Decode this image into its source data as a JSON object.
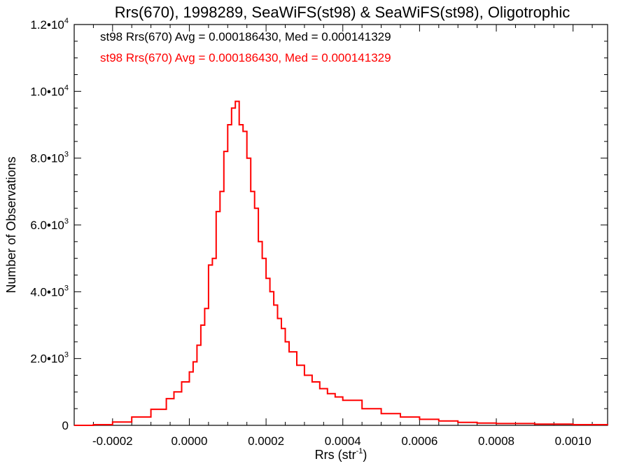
{
  "chart_data": {
    "type": "histogram",
    "title": "Rrs(670), 1998289, SeaWiFS(st98) & SeaWiFS(st98), Oligotrophic",
    "xlabel": "Rrs (str",
    "xlabel_sup": "-1",
    "xlabel_end": ")",
    "ylabel": "Number of Observations",
    "xlim": [
      -0.0003,
      0.00109
    ],
    "ylim": [
      0,
      12000
    ],
    "grid": false,
    "x_ticks": [
      -0.0002,
      0.0,
      0.0002,
      0.0004,
      0.0006,
      0.0008,
      0.001
    ],
    "x_tick_labels": [
      "-0.0002",
      "0.0000",
      "0.0002",
      "0.0004",
      "0.0006",
      "0.0008",
      "0.0010"
    ],
    "y_ticks": [
      0,
      2000,
      4000,
      6000,
      8000,
      10000,
      12000
    ],
    "y_tick_labels": [
      {
        "base": "0",
        "exp": ""
      },
      {
        "base": "2.0•10",
        "exp": "3"
      },
      {
        "base": "4.0•10",
        "exp": "3"
      },
      {
        "base": "6.0•10",
        "exp": "3"
      },
      {
        "base": "8.0•10",
        "exp": "3"
      },
      {
        "base": "1.0•10",
        "exp": "4"
      },
      {
        "base": "1.2•10",
        "exp": "4"
      }
    ],
    "legend": [
      {
        "text": "st98 Rrs(670) Avg = 0.000186430, Med = 0.000141329",
        "color": "#000000"
      },
      {
        "text": "st98 Rrs(670) Avg = 0.000186430, Med = 0.000141329",
        "color": "#ff0000"
      }
    ],
    "series": [
      {
        "color": "#ff0000",
        "points": [
          [
            -0.0003,
            0
          ],
          [
            -0.00025,
            20
          ],
          [
            -0.0002,
            100
          ],
          [
            -0.00015,
            250
          ],
          [
            -0.0001,
            480
          ],
          [
            -6e-05,
            800
          ],
          [
            -4e-05,
            1000
          ],
          [
            -2e-05,
            1300
          ],
          [
            0.0,
            1600
          ],
          [
            1e-05,
            1900
          ],
          [
            2e-05,
            2400
          ],
          [
            3e-05,
            3000
          ],
          [
            4e-05,
            3500
          ],
          [
            5e-05,
            4800
          ],
          [
            6e-05,
            5000
          ],
          [
            7e-05,
            6400
          ],
          [
            8e-05,
            7000
          ],
          [
            9e-05,
            8200
          ],
          [
            0.0001,
            9000
          ],
          [
            0.00011,
            9500
          ],
          [
            0.00012,
            9700
          ],
          [
            0.00013,
            9000
          ],
          [
            0.00014,
            8800
          ],
          [
            0.00015,
            8000
          ],
          [
            0.00016,
            7000
          ],
          [
            0.00017,
            6500
          ],
          [
            0.00018,
            5500
          ],
          [
            0.00019,
            5000
          ],
          [
            0.0002,
            4400
          ],
          [
            0.00021,
            4000
          ],
          [
            0.00022,
            3600
          ],
          [
            0.00023,
            3200
          ],
          [
            0.00024,
            2900
          ],
          [
            0.00025,
            2500
          ],
          [
            0.00026,
            2200
          ],
          [
            0.00028,
            1800
          ],
          [
            0.0003,
            1500
          ],
          [
            0.00032,
            1300
          ],
          [
            0.00034,
            1100
          ],
          [
            0.00036,
            950
          ],
          [
            0.00038,
            850
          ],
          [
            0.0004,
            750
          ],
          [
            0.00045,
            500
          ],
          [
            0.0005,
            350
          ],
          [
            0.00055,
            250
          ],
          [
            0.0006,
            180
          ],
          [
            0.00065,
            130
          ],
          [
            0.0007,
            90
          ],
          [
            0.00075,
            70
          ],
          [
            0.0008,
            55
          ],
          [
            0.0009,
            35
          ],
          [
            0.001,
            20
          ],
          [
            0.00109,
            10
          ]
        ]
      }
    ]
  }
}
